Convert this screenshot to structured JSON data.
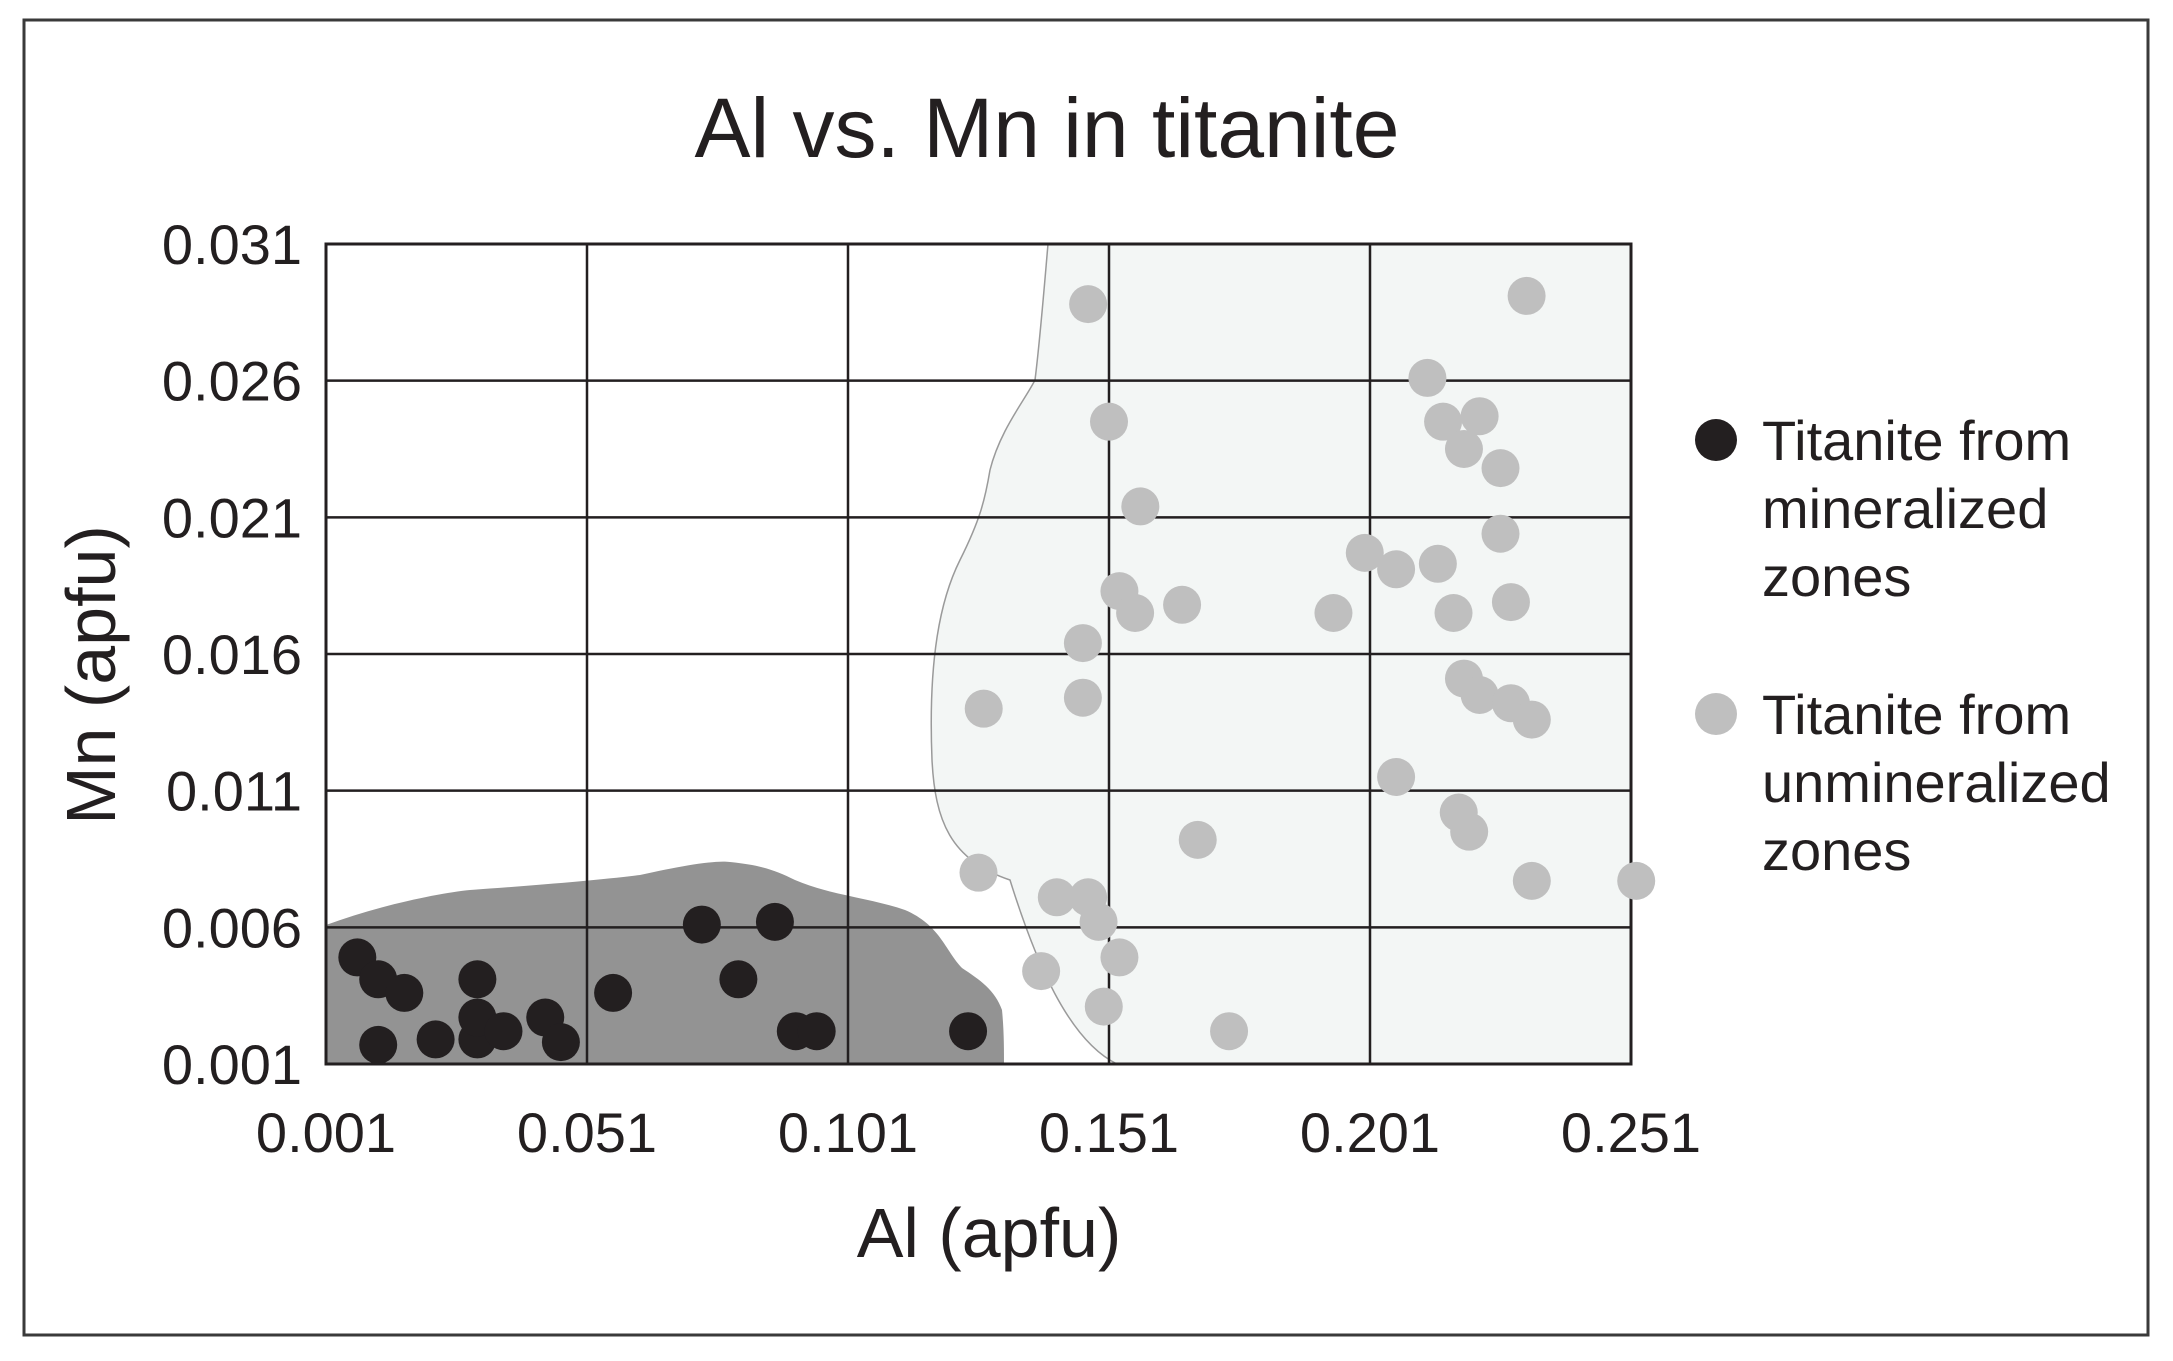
{
  "chart_data": {
    "type": "scatter",
    "title": "Al vs. Mn in titanite",
    "xlabel": "Al (apfu)",
    "ylabel": "Mn (apfu)",
    "xlim": [
      0.001,
      0.251
    ],
    "ylim": [
      0.001,
      0.031
    ],
    "xticks": [
      "0.001",
      "0.051",
      "0.101",
      "0.151",
      "0.201",
      "0.251"
    ],
    "yticks": [
      "0.001",
      "0.006",
      "0.011",
      "0.016",
      "0.021",
      "0.026",
      "0.031"
    ],
    "grid": true,
    "legend_position": "right",
    "series": [
      {
        "name": "Titanite from mineralized zones",
        "legend_lines": [
          "Titanite from",
          "mineralized",
          "zones"
        ],
        "color": "#231f20",
        "region_color": "#939393",
        "points": [
          [
            0.007,
            0.0049
          ],
          [
            0.011,
            0.0041
          ],
          [
            0.016,
            0.0036
          ],
          [
            0.011,
            0.0017
          ],
          [
            0.022,
            0.0019
          ],
          [
            0.03,
            0.0019
          ],
          [
            0.03,
            0.0041
          ],
          [
            0.03,
            0.0027
          ],
          [
            0.035,
            0.0022
          ],
          [
            0.043,
            0.0027
          ],
          [
            0.046,
            0.0018
          ],
          [
            0.056,
            0.0036
          ],
          [
            0.073,
            0.0061
          ],
          [
            0.08,
            0.0041
          ],
          [
            0.087,
            0.0062
          ],
          [
            0.091,
            0.0022
          ],
          [
            0.095,
            0.0022
          ],
          [
            0.124,
            0.0022
          ]
        ]
      },
      {
        "name": "Titanite from unmineralized zones",
        "legend_lines": [
          "Titanite from",
          "unmineralized",
          "zones"
        ],
        "color": "#bfbfbf",
        "region_color": "#f3f6f5",
        "points": [
          [
            0.147,
            0.0288
          ],
          [
            0.151,
            0.0245
          ],
          [
            0.157,
            0.0214
          ],
          [
            0.153,
            0.0183
          ],
          [
            0.156,
            0.0175
          ],
          [
            0.165,
            0.0178
          ],
          [
            0.146,
            0.0164
          ],
          [
            0.146,
            0.0144
          ],
          [
            0.127,
            0.014
          ],
          [
            0.126,
            0.008
          ],
          [
            0.141,
            0.0071
          ],
          [
            0.147,
            0.0071
          ],
          [
            0.149,
            0.0062
          ],
          [
            0.153,
            0.0049
          ],
          [
            0.138,
            0.0044
          ],
          [
            0.15,
            0.0031
          ],
          [
            0.168,
            0.0092
          ],
          [
            0.174,
            0.0022
          ],
          [
            0.194,
            0.0175
          ],
          [
            0.2,
            0.0197
          ],
          [
            0.206,
            0.0191
          ],
          [
            0.212,
            0.0261
          ],
          [
            0.214,
            0.0193
          ],
          [
            0.215,
            0.0245
          ],
          [
            0.219,
            0.0235
          ],
          [
            0.222,
            0.0247
          ],
          [
            0.226,
            0.0228
          ],
          [
            0.226,
            0.0204
          ],
          [
            0.228,
            0.0179
          ],
          [
            0.217,
            0.0175
          ],
          [
            0.219,
            0.0151
          ],
          [
            0.222,
            0.0145
          ],
          [
            0.228,
            0.0142
          ],
          [
            0.232,
            0.0136
          ],
          [
            0.231,
            0.0291
          ],
          [
            0.206,
            0.0115
          ],
          [
            0.218,
            0.0102
          ],
          [
            0.22,
            0.0095
          ],
          [
            0.232,
            0.0077
          ],
          [
            0.252,
            0.0077
          ]
        ]
      }
    ]
  }
}
